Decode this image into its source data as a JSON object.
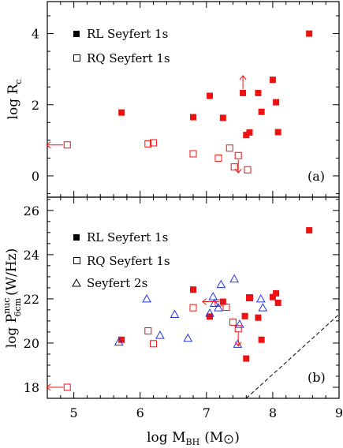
{
  "chart_data": [
    {
      "type": "scatter",
      "panel_label": "(a)",
      "ylabel": "log R",
      "ylabel_sub": "c",
      "xlim": [
        4.6,
        9.0
      ],
      "ylim": [
        -0.6,
        4.9
      ],
      "yticks": [
        "0",
        "2",
        "4"
      ],
      "legend": [
        {
          "name": "RL Seyfert 1s",
          "marker": "filled-square"
        },
        {
          "name": "RQ Seyfert 1s",
          "marker": "open-square"
        }
      ],
      "series": [
        {
          "name": "RL Seyfert 1s",
          "marker": "filled-square",
          "color": "#ee1111",
          "points": [
            [
              5.72,
              1.78
            ],
            [
              6.8,
              1.65
            ],
            [
              7.05,
              2.25
            ],
            [
              7.25,
              1.63
            ],
            [
              7.55,
              2.33
            ],
            [
              7.6,
              1.15
            ],
            [
              7.65,
              1.22
            ],
            [
              7.78,
              2.33
            ],
            [
              7.83,
              1.8
            ],
            [
              8.0,
              2.7
            ],
            [
              8.05,
              2.07
            ],
            [
              8.08,
              1.23
            ],
            [
              8.55,
              4.0
            ]
          ]
        },
        {
          "name": "RQ Seyfert 1s",
          "marker": "open-square",
          "color": "#ee1111",
          "points": [
            [
              4.9,
              0.87
            ],
            [
              6.12,
              0.9
            ],
            [
              6.2,
              0.93
            ],
            [
              6.8,
              0.62
            ],
            [
              7.18,
              0.5
            ],
            [
              7.35,
              0.78
            ],
            [
              7.42,
              0.25
            ],
            [
              7.48,
              0.57
            ],
            [
              7.62,
              0.17
            ]
          ]
        }
      ],
      "limits": [
        {
          "x": 4.9,
          "y": 0.87,
          "dir": "left"
        },
        {
          "x": 7.55,
          "y": 2.33,
          "dir": "up"
        },
        {
          "x": 7.48,
          "y": 0.57,
          "dir": "down"
        }
      ]
    },
    {
      "type": "scatter",
      "panel_label": "(b)",
      "ylabel": "log P",
      "ylabel_sup": "nuc",
      "ylabel_sub": "6cm",
      "ylabel_unit": "(W/Hz)",
      "xlabel": "log M",
      "xlabel_sub": "BH",
      "xlabel_unit_open": "(M",
      "xlabel_unit_close": ")",
      "xlim": [
        4.6,
        9.0
      ],
      "ylim": [
        17.5,
        26.6
      ],
      "xticks": [
        "5",
        "6",
        "7",
        "8",
        "9"
      ],
      "yticks": [
        "18",
        "20",
        "22",
        "24",
        "26"
      ],
      "legend": [
        {
          "name": "RL Seyfert 1s",
          "marker": "filled-square"
        },
        {
          "name": "RQ Seyfert 1s",
          "marker": "open-square"
        },
        {
          "name": "Seyfert 2s",
          "marker": "open-triangle"
        }
      ],
      "series": [
        {
          "name": "RL Seyfert 1s",
          "marker": "filled-square",
          "color": "#ee1111",
          "points": [
            [
              5.72,
              20.15
            ],
            [
              6.8,
              22.42
            ],
            [
              7.05,
              21.2
            ],
            [
              7.25,
              21.87
            ],
            [
              7.58,
              21.22
            ],
            [
              7.6,
              19.3
            ],
            [
              7.65,
              22.05
            ],
            [
              7.78,
              21.15
            ],
            [
              7.83,
              20.15
            ],
            [
              8.0,
              22.08
            ],
            [
              8.05,
              22.25
            ],
            [
              8.08,
              21.82
            ],
            [
              8.55,
              25.1
            ]
          ]
        },
        {
          "name": "RQ Seyfert 1s",
          "marker": "open-square",
          "color": "#ee1111",
          "points": [
            [
              4.9,
              18.0
            ],
            [
              6.12,
              20.55
            ],
            [
              6.2,
              19.97
            ],
            [
              6.8,
              21.6
            ],
            [
              7.18,
              21.82
            ],
            [
              7.3,
              21.62
            ],
            [
              7.4,
              20.95
            ],
            [
              7.48,
              20.65
            ],
            [
              7.65,
              22.05
            ]
          ]
        },
        {
          "name": "Seyfert 2s",
          "marker": "open-triangle",
          "color": "#2233dd",
          "points": [
            [
              5.68,
              20.05
            ],
            [
              6.1,
              22.0
            ],
            [
              6.3,
              20.35
            ],
            [
              6.52,
              21.3
            ],
            [
              6.72,
              20.22
            ],
            [
              7.05,
              21.35
            ],
            [
              7.1,
              22.1
            ],
            [
              7.12,
              21.8
            ],
            [
              7.18,
              21.6
            ],
            [
              7.22,
              22.65
            ],
            [
              7.42,
              22.9
            ],
            [
              7.47,
              19.95
            ],
            [
              7.5,
              20.85
            ],
            [
              7.82,
              22.0
            ],
            [
              7.85,
              21.6
            ]
          ]
        }
      ],
      "limits": [
        {
          "x": 4.9,
          "y": 18.0,
          "dir": "left"
        },
        {
          "x": 7.25,
          "y": 21.87,
          "dir": "left"
        },
        {
          "x": 7.48,
          "y": 20.65,
          "dir": "down"
        }
      ],
      "dashed_line": [
        [
          7.6,
          17.5
        ],
        [
          9.0,
          21.3
        ]
      ]
    }
  ]
}
